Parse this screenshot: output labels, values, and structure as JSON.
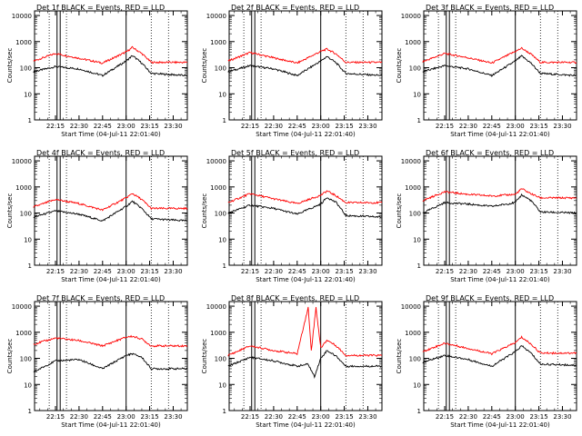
{
  "axis": {
    "ylabel": "Counts/sec",
    "xlabel_prefix": "Start Time",
    "start_time": "(04-Jul-11 22:01:40)",
    "x_ticks": [
      "22:15",
      "22:30",
      "22:45",
      "23:00",
      "23:15",
      "23:30"
    ],
    "y_ticks": [
      "1",
      "10",
      "100",
      "1000",
      "10000"
    ]
  },
  "legend_text": "BLACK = Events, RED = LLD",
  "colors": {
    "events": "#000000",
    "lld": "#ff0000"
  },
  "chart_data": [
    {
      "type": "line",
      "title": "Det 1f",
      "ylim": [
        1,
        15000
      ],
      "y_scale": "log",
      "x_time_start": "22:01:40",
      "x_time_end": "23:39",
      "vertical_markers_dotted": [
        "22:11",
        "22:22",
        "23:16",
        "23:27"
      ],
      "vertical_markers_solid": [
        "22:16",
        "22:18",
        "23:00"
      ],
      "series": [
        {
          "name": "Events",
          "color": "black",
          "points": [
            [
              "22:01",
              70
            ],
            [
              "22:15",
              110
            ],
            [
              "22:30",
              90
            ],
            [
              "22:45",
              50
            ],
            [
              "23:00",
              180
            ],
            [
              "23:04",
              290
            ],
            [
              "23:10",
              150
            ],
            [
              "23:16",
              60
            ],
            [
              "23:39",
              50
            ]
          ]
        },
        {
          "name": "LLD",
          "color": "red",
          "points": [
            [
              "22:01",
              180
            ],
            [
              "22:15",
              350
            ],
            [
              "22:30",
              230
            ],
            [
              "22:45",
              150
            ],
            [
              "23:00",
              400
            ],
            [
              "23:04",
              600
            ],
            [
              "23:10",
              350
            ],
            [
              "23:16",
              160
            ],
            [
              "23:39",
              160
            ]
          ]
        }
      ]
    },
    {
      "type": "line",
      "title": "Det 2f",
      "ylim": [
        1,
        15000
      ],
      "y_scale": "log",
      "x_time_start": "22:01:40",
      "x_time_end": "23:39",
      "vertical_markers_dotted": [
        "22:11",
        "22:22",
        "23:16",
        "23:27"
      ],
      "vertical_markers_solid": [
        "22:16",
        "22:18",
        "23:00"
      ],
      "series": [
        {
          "name": "Events",
          "color": "black",
          "points": [
            [
              "22:01",
              70
            ],
            [
              "22:15",
              120
            ],
            [
              "22:30",
              90
            ],
            [
              "22:45",
              50
            ],
            [
              "23:00",
              180
            ],
            [
              "23:04",
              270
            ],
            [
              "23:10",
              150
            ],
            [
              "23:16",
              60
            ],
            [
              "23:39",
              50
            ]
          ]
        },
        {
          "name": "LLD",
          "color": "red",
          "points": [
            [
              "22:01",
              180
            ],
            [
              "22:15",
              380
            ],
            [
              "22:30",
              240
            ],
            [
              "22:45",
              150
            ],
            [
              "23:00",
              420
            ],
            [
              "23:04",
              520
            ],
            [
              "23:10",
              330
            ],
            [
              "23:16",
              160
            ],
            [
              "23:39",
              160
            ]
          ]
        }
      ]
    },
    {
      "type": "line",
      "title": "Det 3f",
      "ylim": [
        1,
        15000
      ],
      "y_scale": "log",
      "x_time_start": "22:01:40",
      "x_time_end": "23:39",
      "vertical_markers_dotted": [
        "22:11",
        "22:22",
        "23:16",
        "23:27"
      ],
      "vertical_markers_solid": [
        "22:16",
        "22:18",
        "23:00"
      ],
      "series": [
        {
          "name": "Events",
          "color": "black",
          "points": [
            [
              "22:01",
              70
            ],
            [
              "22:15",
              120
            ],
            [
              "22:30",
              90
            ],
            [
              "22:45",
              50
            ],
            [
              "23:00",
              180
            ],
            [
              "23:04",
              280
            ],
            [
              "23:10",
              150
            ],
            [
              "23:16",
              60
            ],
            [
              "23:39",
              50
            ]
          ]
        },
        {
          "name": "LLD",
          "color": "red",
          "points": [
            [
              "22:01",
              170
            ],
            [
              "22:15",
              350
            ],
            [
              "22:30",
              240
            ],
            [
              "22:45",
              150
            ],
            [
              "23:00",
              420
            ],
            [
              "23:04",
              560
            ],
            [
              "23:10",
              330
            ],
            [
              "23:16",
              160
            ],
            [
              "23:39",
              160
            ]
          ]
        }
      ]
    },
    {
      "type": "line",
      "title": "Det 4f",
      "ylim": [
        1,
        15000
      ],
      "y_scale": "log",
      "x_time_start": "22:01:40",
      "x_time_end": "23:39",
      "vertical_markers_dotted": [
        "22:11",
        "22:22",
        "23:16",
        "23:27"
      ],
      "vertical_markers_solid": [
        "22:16",
        "22:18",
        "23:00"
      ],
      "series": [
        {
          "name": "Events",
          "color": "black",
          "points": [
            [
              "22:01",
              70
            ],
            [
              "22:15",
              120
            ],
            [
              "22:30",
              90
            ],
            [
              "22:45",
              50
            ],
            [
              "23:00",
              180
            ],
            [
              "23:04",
              280
            ],
            [
              "23:10",
              150
            ],
            [
              "23:16",
              60
            ],
            [
              "23:39",
              50
            ]
          ]
        },
        {
          "name": "LLD",
          "color": "red",
          "points": [
            [
              "22:01",
              170
            ],
            [
              "22:15",
              330
            ],
            [
              "22:30",
              230
            ],
            [
              "22:45",
              130
            ],
            [
              "23:00",
              380
            ],
            [
              "23:04",
              560
            ],
            [
              "23:10",
              330
            ],
            [
              "23:16",
              150
            ],
            [
              "23:39",
              150
            ]
          ]
        }
      ]
    },
    {
      "type": "line",
      "title": "Det 5f",
      "ylim": [
        1,
        15000
      ],
      "y_scale": "log",
      "x_time_start": "22:01:40",
      "x_time_end": "23:39",
      "vertical_markers_dotted": [
        "22:11",
        "22:22",
        "23:16",
        "23:27"
      ],
      "vertical_markers_solid": [
        "22:16",
        "22:18",
        "23:00"
      ],
      "series": [
        {
          "name": "Events",
          "color": "black",
          "points": [
            [
              "22:01",
              100
            ],
            [
              "22:15",
              200
            ],
            [
              "22:30",
              150
            ],
            [
              "22:45",
              90
            ],
            [
              "23:00",
              220
            ],
            [
              "23:04",
              400
            ],
            [
              "23:10",
              250
            ],
            [
              "23:16",
              80
            ],
            [
              "23:39",
              70
            ]
          ]
        },
        {
          "name": "LLD",
          "color": "red",
          "points": [
            [
              "22:01",
              250
            ],
            [
              "22:15",
              550
            ],
            [
              "22:30",
              350
            ],
            [
              "22:45",
              230
            ],
            [
              "23:00",
              480
            ],
            [
              "23:04",
              700
            ],
            [
              "23:10",
              450
            ],
            [
              "23:16",
              250
            ],
            [
              "23:39",
              250
            ]
          ]
        }
      ]
    },
    {
      "type": "line",
      "title": "Det 6f",
      "ylim": [
        1,
        15000
      ],
      "y_scale": "log",
      "x_time_start": "22:01:40",
      "x_time_end": "23:39",
      "vertical_markers_dotted": [
        "22:11",
        "22:22",
        "23:16",
        "23:27"
      ],
      "vertical_markers_solid": [
        "22:16",
        "22:18",
        "23:00"
      ],
      "series": [
        {
          "name": "Events",
          "color": "black",
          "points": [
            [
              "22:01",
              100
            ],
            [
              "22:15",
              250
            ],
            [
              "22:30",
              220
            ],
            [
              "22:45",
              180
            ],
            [
              "23:00",
              250
            ],
            [
              "23:04",
              500
            ],
            [
              "23:10",
              300
            ],
            [
              "23:16",
              110
            ],
            [
              "23:39",
              100
            ]
          ]
        },
        {
          "name": "LLD",
          "color": "red",
          "points": [
            [
              "22:01",
              300
            ],
            [
              "22:15",
              650
            ],
            [
              "22:30",
              520
            ],
            [
              "22:45",
              450
            ],
            [
              "23:00",
              520
            ],
            [
              "23:04",
              850
            ],
            [
              "23:10",
              550
            ],
            [
              "23:16",
              380
            ],
            [
              "23:39",
              380
            ]
          ]
        }
      ]
    },
    {
      "type": "line",
      "title": "Det 7f",
      "ylim": [
        1,
        15000
      ],
      "y_scale": "log",
      "x_time_start": "22:01:40",
      "x_time_end": "23:39",
      "vertical_markers_dotted": [
        "22:11",
        "22:22",
        "23:16",
        "23:27"
      ],
      "vertical_markers_solid": [
        "22:16",
        "22:18",
        "23:00"
      ],
      "series": [
        {
          "name": "Events",
          "color": "black",
          "points": [
            [
              "22:01",
              30
            ],
            [
              "22:15",
              80
            ],
            [
              "22:30",
              90
            ],
            [
              "22:45",
              40
            ],
            [
              "23:00",
              130
            ],
            [
              "23:04",
              150
            ],
            [
              "23:10",
              110
            ],
            [
              "23:16",
              40
            ],
            [
              "23:39",
              40
            ]
          ]
        },
        {
          "name": "LLD",
          "color": "red",
          "points": [
            [
              "22:01",
              350
            ],
            [
              "22:15",
              600
            ],
            [
              "22:30",
              480
            ],
            [
              "22:45",
              300
            ],
            [
              "23:00",
              650
            ],
            [
              "23:04",
              700
            ],
            [
              "23:10",
              550
            ],
            [
              "23:16",
              300
            ],
            [
              "23:39",
              300
            ]
          ]
        }
      ]
    },
    {
      "type": "line",
      "title": "Det 8f",
      "ylim": [
        1,
        15000
      ],
      "y_scale": "log",
      "x_time_start": "22:01:40",
      "x_time_end": "23:39",
      "vertical_markers_dotted": [
        "22:11",
        "22:22",
        "23:16",
        "23:27"
      ],
      "vertical_markers_solid": [
        "22:16",
        "22:18",
        "23:00"
      ],
      "series": [
        {
          "name": "Events",
          "color": "black",
          "points": [
            [
              "22:01",
              50
            ],
            [
              "22:15",
              110
            ],
            [
              "22:30",
              80
            ],
            [
              "22:45",
              50
            ],
            [
              "22:52",
              60
            ],
            [
              "22:56",
              20
            ],
            [
              "23:00",
              100
            ],
            [
              "23:04",
              200
            ],
            [
              "23:10",
              120
            ],
            [
              "23:16",
              50
            ],
            [
              "23:39",
              50
            ]
          ]
        },
        {
          "name": "LLD",
          "color": "red",
          "points": [
            [
              "22:01",
              130
            ],
            [
              "22:15",
              300
            ],
            [
              "22:30",
              200
            ],
            [
              "22:45",
              150
            ],
            [
              "22:52",
              9000
            ],
            [
              "22:54",
              200
            ],
            [
              "22:57",
              9000
            ],
            [
              "23:00",
              250
            ],
            [
              "23:04",
              500
            ],
            [
              "23:10",
              300
            ],
            [
              "23:16",
              130
            ],
            [
              "23:39",
              130
            ]
          ]
        }
      ]
    },
    {
      "type": "line",
      "title": "Det 9f",
      "ylim": [
        1,
        15000
      ],
      "y_scale": "log",
      "x_time_start": "22:01:40",
      "x_time_end": "23:39",
      "vertical_markers_dotted": [
        "22:11",
        "22:22",
        "23:16",
        "23:27"
      ],
      "vertical_markers_solid": [
        "22:16",
        "22:18",
        "23:00"
      ],
      "series": [
        {
          "name": "Events",
          "color": "black",
          "points": [
            [
              "22:01",
              70
            ],
            [
              "22:15",
              130
            ],
            [
              "22:30",
              90
            ],
            [
              "22:45",
              50
            ],
            [
              "23:00",
              180
            ],
            [
              "23:04",
              300
            ],
            [
              "23:10",
              160
            ],
            [
              "23:16",
              60
            ],
            [
              "23:39",
              55
            ]
          ]
        },
        {
          "name": "LLD",
          "color": "red",
          "points": [
            [
              "22:01",
              180
            ],
            [
              "22:15",
              380
            ],
            [
              "22:30",
              240
            ],
            [
              "22:45",
              150
            ],
            [
              "23:00",
              400
            ],
            [
              "23:04",
              650
            ],
            [
              "23:10",
              350
            ],
            [
              "23:16",
              160
            ],
            [
              "23:39",
              160
            ]
          ]
        }
      ]
    }
  ]
}
